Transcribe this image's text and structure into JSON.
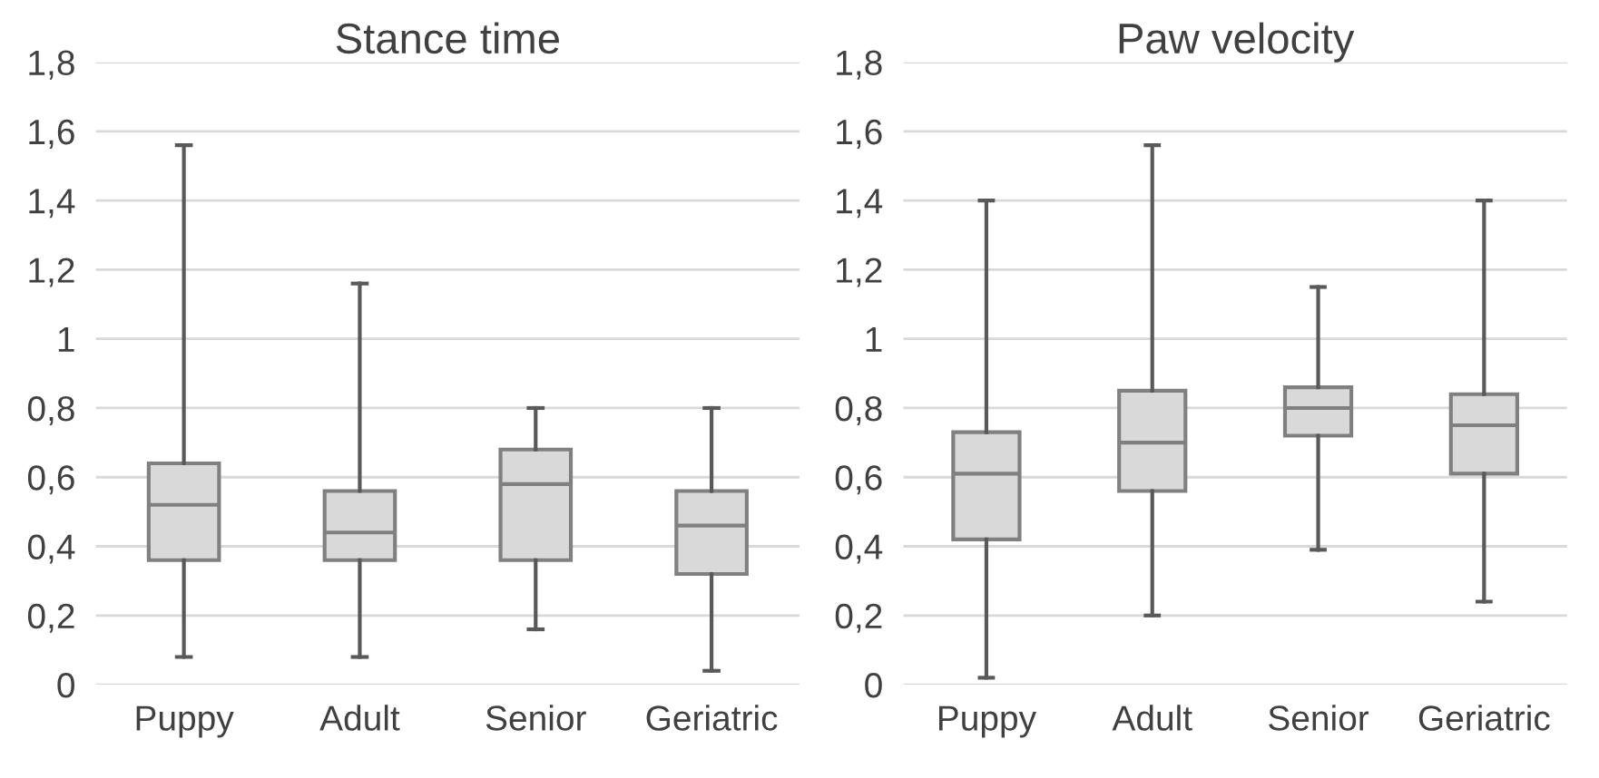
{
  "chart_data": [
    {
      "type": "box",
      "title": "Stance time",
      "categories": [
        "Puppy",
        "Adult",
        "Senior",
        "Geriatric"
      ],
      "series": [
        {
          "color": "#d9d9d9",
          "boxes": [
            {
              "low": 0.08,
              "q1": 0.36,
              "median": 0.52,
              "q3": 0.64,
              "high": 1.56
            },
            {
              "low": 0.08,
              "q1": 0.36,
              "median": 0.44,
              "q3": 0.56,
              "high": 1.16
            },
            {
              "low": 0.16,
              "q1": 0.36,
              "median": 0.58,
              "q3": 0.68,
              "high": 0.8
            },
            {
              "low": 0.04,
              "q1": 0.32,
              "median": 0.46,
              "q3": 0.56,
              "high": 0.8
            }
          ]
        }
      ],
      "ylim": [
        0,
        1.8
      ],
      "yticks": [
        0,
        {
          "value": 0.2,
          "label": "0,2"
        },
        {
          "value": 0.4,
          "label": "0,4"
        },
        {
          "value": 0.6,
          "label": "0,6"
        },
        {
          "value": 0.8,
          "label": "0,8"
        },
        1,
        {
          "value": 1.2,
          "label": "1,2"
        },
        {
          "value": 1.4,
          "label": "1,4"
        },
        {
          "value": 1.6,
          "label": "1,6"
        },
        {
          "value": 1.8,
          "label": "1,8"
        }
      ],
      "grid": "y"
    },
    {
      "type": "box",
      "title": "Paw velocity",
      "categories": [
        "Puppy",
        "Adult",
        "Senior",
        "Geriatric"
      ],
      "series": [
        {
          "color": "#d9d9d9",
          "boxes": [
            {
              "low": 0.02,
              "q1": 0.42,
              "median": 0.61,
              "q3": 0.73,
              "high": 1.4
            },
            {
              "low": 0.2,
              "q1": 0.56,
              "median": 0.7,
              "q3": 0.85,
              "high": 1.56
            },
            {
              "low": 0.39,
              "q1": 0.72,
              "median": 0.8,
              "q3": 0.86,
              "high": 1.15
            },
            {
              "low": 0.24,
              "q1": 0.61,
              "median": 0.75,
              "q3": 0.84,
              "high": 1.4
            }
          ]
        }
      ],
      "ylim": [
        0,
        1.8
      ],
      "yticks": [
        0,
        {
          "value": 0.2,
          "label": "0,2"
        },
        {
          "value": 0.4,
          "label": "0,4"
        },
        {
          "value": 0.6,
          "label": "0,6"
        },
        {
          "value": 0.8,
          "label": "0,8"
        },
        1,
        {
          "value": 1.2,
          "label": "1,2"
        },
        {
          "value": 1.4,
          "label": "1,4"
        },
        {
          "value": 1.6,
          "label": "1,6"
        },
        {
          "value": 1.8,
          "label": "1,8"
        }
      ],
      "grid": "y"
    }
  ]
}
